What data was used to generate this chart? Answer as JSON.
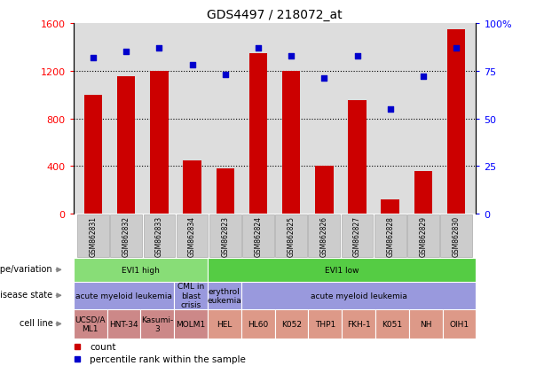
{
  "title": "GDS4497 / 218072_at",
  "samples": [
    "GSM862831",
    "GSM862832",
    "GSM862833",
    "GSM862834",
    "GSM862823",
    "GSM862824",
    "GSM862825",
    "GSM862826",
    "GSM862827",
    "GSM862828",
    "GSM862829",
    "GSM862830"
  ],
  "counts": [
    1000,
    1150,
    1200,
    450,
    380,
    1350,
    1200,
    400,
    950,
    120,
    360,
    1550
  ],
  "percentiles": [
    82,
    85,
    87,
    78,
    73,
    87,
    83,
    71,
    83,
    55,
    72,
    87
  ],
  "ylim_left": [
    0,
    1600
  ],
  "ylim_right": [
    0,
    100
  ],
  "yticks_left": [
    0,
    400,
    800,
    1200,
    1600
  ],
  "yticks_right": [
    0,
    25,
    50,
    75,
    100
  ],
  "bar_color": "#cc0000",
  "dot_color": "#0000cc",
  "background_color": "#ffffff",
  "ax_bg_color": "#dddddd",
  "genotype_row": {
    "label": "genotype/variation",
    "groups": [
      {
        "text": "EVI1 high",
        "start": 0,
        "end": 4,
        "color": "#88dd77"
      },
      {
        "text": "EVI1 low",
        "start": 4,
        "end": 12,
        "color": "#55cc44"
      }
    ]
  },
  "disease_row": {
    "label": "disease state",
    "groups": [
      {
        "text": "acute myeloid leukemia",
        "start": 0,
        "end": 3,
        "color": "#9999dd"
      },
      {
        "text": "CML in\nblast\ncrisis",
        "start": 3,
        "end": 4,
        "color": "#9999dd"
      },
      {
        "text": "erythrol\neukemia",
        "start": 4,
        "end": 5,
        "color": "#9999dd"
      },
      {
        "text": "acute myeloid leukemia",
        "start": 5,
        "end": 12,
        "color": "#9999dd"
      }
    ]
  },
  "cellline_row": {
    "label": "cell line",
    "groups": [
      {
        "text": "UCSD/A\nML1",
        "start": 0,
        "end": 1,
        "color": "#cc8888"
      },
      {
        "text": "HNT-34",
        "start": 1,
        "end": 2,
        "color": "#cc8888"
      },
      {
        "text": "Kasumi-\n3",
        "start": 2,
        "end": 3,
        "color": "#cc8888"
      },
      {
        "text": "MOLM1",
        "start": 3,
        "end": 4,
        "color": "#cc8888"
      },
      {
        "text": "HEL",
        "start": 4,
        "end": 5,
        "color": "#dd9988"
      },
      {
        "text": "HL60",
        "start": 5,
        "end": 6,
        "color": "#dd9988"
      },
      {
        "text": "K052",
        "start": 6,
        "end": 7,
        "color": "#dd9988"
      },
      {
        "text": "THP1",
        "start": 7,
        "end": 8,
        "color": "#dd9988"
      },
      {
        "text": "FKH-1",
        "start": 8,
        "end": 9,
        "color": "#dd9988"
      },
      {
        "text": "K051",
        "start": 9,
        "end": 10,
        "color": "#dd9988"
      },
      {
        "text": "NH",
        "start": 10,
        "end": 11,
        "color": "#dd9988"
      },
      {
        "text": "OIH1",
        "start": 11,
        "end": 12,
        "color": "#dd9988"
      }
    ]
  }
}
